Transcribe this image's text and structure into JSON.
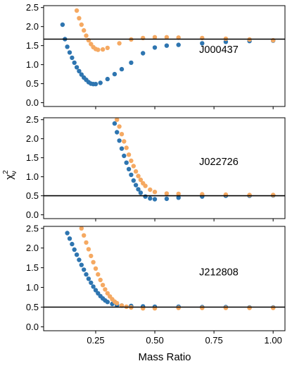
{
  "chart_data": {
    "type": "scatter",
    "xlabel": "Mass Ratio",
    "ylabel_main": "χ",
    "ylabel_sup": "2",
    "ylabel_sub": "ν",
    "xlim": [
      0.03,
      1.05
    ],
    "ylim": [
      -0.1,
      2.55
    ],
    "xticks": [
      "0.25",
      "0.50",
      "0.75",
      "1.00"
    ],
    "xtick_values": [
      0.25,
      0.5,
      0.75,
      1.0
    ],
    "yticks": [
      "0.0",
      "0.5",
      "1.0",
      "1.5",
      "2.0",
      "2.5"
    ],
    "ytick_values": [
      0.0,
      0.5,
      1.0,
      1.5,
      2.0,
      2.5
    ],
    "colors": {
      "blue": "#2e75b0",
      "orange": "#f5a962",
      "line": "#000000"
    },
    "panels": [
      {
        "label": "J000437",
        "hline": 1.67,
        "series": [
          {
            "color": "blue",
            "x": [
              0.11,
              0.12,
              0.13,
              0.14,
              0.15,
              0.16,
              0.17,
              0.18,
              0.19,
              0.2,
              0.21,
              0.22,
              0.23,
              0.24,
              0.25,
              0.27,
              0.3,
              0.33,
              0.36,
              0.4,
              0.45,
              0.5,
              0.55,
              0.6,
              0.7,
              0.8,
              0.9,
              1.0
            ],
            "y": [
              2.05,
              1.67,
              1.47,
              1.32,
              1.18,
              1.05,
              0.93,
              0.83,
              0.74,
              0.66,
              0.6,
              0.54,
              0.5,
              0.49,
              0.49,
              0.52,
              0.62,
              0.75,
              0.88,
              1.05,
              1.3,
              1.45,
              1.5,
              1.52,
              1.56,
              1.6,
              1.62,
              1.63
            ]
          },
          {
            "color": "orange",
            "x": [
              0.17,
              0.18,
              0.19,
              0.2,
              0.21,
              0.22,
              0.23,
              0.24,
              0.25,
              0.26,
              0.28,
              0.3,
              0.35,
              0.4,
              0.45,
              0.5,
              0.55,
              0.6,
              0.7,
              0.8,
              0.9,
              1.0
            ],
            "y": [
              2.42,
              2.22,
              2.05,
              1.9,
              1.76,
              1.64,
              1.54,
              1.46,
              1.41,
              1.39,
              1.4,
              1.44,
              1.56,
              1.66,
              1.7,
              1.72,
              1.72,
              1.71,
              1.7,
              1.68,
              1.66,
              1.64
            ]
          }
        ]
      },
      {
        "label": "J022726",
        "hline": 0.5,
        "series": [
          {
            "color": "blue",
            "x": [
              0.32,
              0.33,
              0.34,
              0.35,
              0.36,
              0.37,
              0.38,
              0.39,
              0.4,
              0.41,
              0.42,
              0.43,
              0.44,
              0.46,
              0.48,
              0.5,
              0.55,
              0.6,
              0.7,
              0.8,
              0.9,
              1.0
            ],
            "y": [
              2.62,
              2.4,
              2.17,
              1.95,
              1.74,
              1.55,
              1.37,
              1.2,
              1.05,
              0.9,
              0.78,
              0.67,
              0.58,
              0.48,
              0.43,
              0.41,
              0.42,
              0.45,
              0.48,
              0.5,
              0.5,
              0.51
            ]
          },
          {
            "color": "orange",
            "x": [
              0.33,
              0.34,
              0.35,
              0.36,
              0.37,
              0.38,
              0.39,
              0.4,
              0.41,
              0.42,
              0.43,
              0.44,
              0.45,
              0.46,
              0.48,
              0.5,
              0.55,
              0.6,
              0.7,
              0.8,
              0.9,
              1.0
            ],
            "y": [
              2.7,
              2.5,
              2.32,
              2.12,
              1.93,
              1.76,
              1.58,
              1.42,
              1.28,
              1.14,
              1.02,
              0.92,
              0.83,
              0.76,
              0.66,
              0.6,
              0.56,
              0.55,
              0.54,
              0.53,
              0.52,
              0.52
            ]
          }
        ]
      },
      {
        "label": "J212808",
        "hline": 0.5,
        "series": [
          {
            "color": "blue",
            "x": [
              0.13,
              0.14,
              0.15,
              0.16,
              0.17,
              0.18,
              0.19,
              0.2,
              0.21,
              0.22,
              0.23,
              0.24,
              0.25,
              0.26,
              0.27,
              0.28,
              0.29,
              0.3,
              0.32,
              0.34,
              0.36,
              0.4,
              0.45,
              0.5,
              0.6,
              0.7,
              0.8,
              0.9,
              1.0
            ],
            "y": [
              2.38,
              2.24,
              2.1,
              1.96,
              1.83,
              1.7,
              1.57,
              1.45,
              1.33,
              1.22,
              1.12,
              1.02,
              0.93,
              0.85,
              0.78,
              0.72,
              0.67,
              0.63,
              0.58,
              0.55,
              0.54,
              0.53,
              0.52,
              0.51,
              0.51,
              0.5,
              0.5,
              0.49,
              0.49
            ]
          },
          {
            "color": "orange",
            "x": [
              0.19,
              0.2,
              0.21,
              0.22,
              0.23,
              0.24,
              0.25,
              0.26,
              0.27,
              0.28,
              0.29,
              0.3,
              0.31,
              0.32,
              0.33,
              0.34,
              0.36,
              0.38,
              0.4,
              0.45,
              0.5,
              0.6,
              0.7,
              0.8,
              0.9,
              1.0
            ],
            "y": [
              2.5,
              2.32,
              2.14,
              1.97,
              1.8,
              1.64,
              1.48,
              1.33,
              1.19,
              1.06,
              0.95,
              0.85,
              0.77,
              0.7,
              0.64,
              0.6,
              0.54,
              0.51,
              0.49,
              0.47,
              0.47,
              0.48,
              0.48,
              0.48,
              0.48,
              0.48
            ]
          }
        ]
      }
    ]
  }
}
